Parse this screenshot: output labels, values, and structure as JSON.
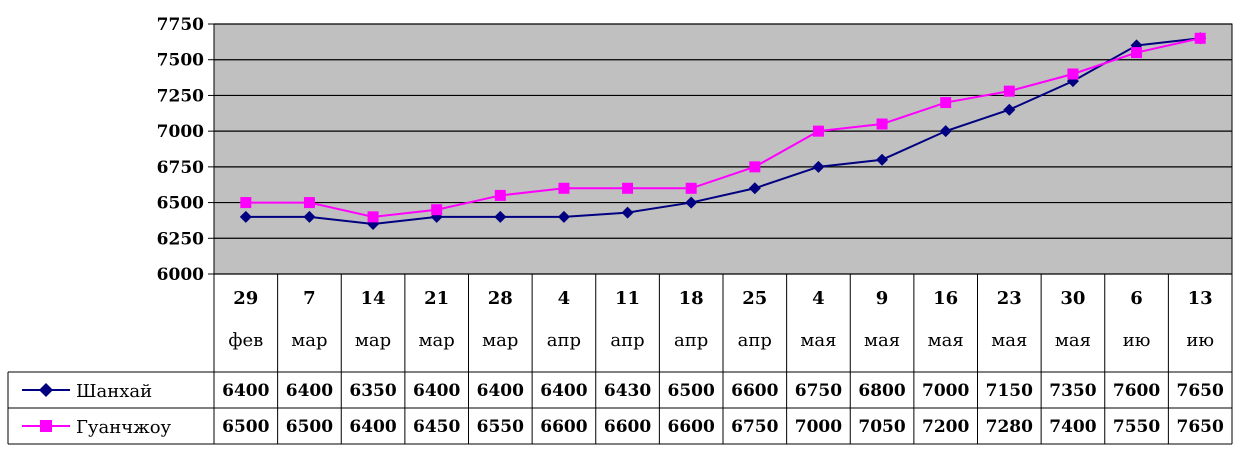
{
  "chart_data": {
    "type": "line",
    "title": "",
    "xlabel": "",
    "ylabel": "",
    "ylim": [
      6000,
      7750
    ],
    "yticks": [
      6000,
      6250,
      6500,
      6750,
      7000,
      7250,
      7500,
      7750
    ],
    "grid": true,
    "plot_background": "#c0c0c0",
    "legend_placement": "data-table-left",
    "categories": [
      {
        "day": "29",
        "month": "фев"
      },
      {
        "day": "7",
        "month": "мар"
      },
      {
        "day": "14",
        "month": "мар"
      },
      {
        "day": "21",
        "month": "мар"
      },
      {
        "day": "28",
        "month": "мар"
      },
      {
        "day": "4",
        "month": "апр"
      },
      {
        "day": "11",
        "month": "апр"
      },
      {
        "day": "18",
        "month": "апр"
      },
      {
        "day": "25",
        "month": "апр"
      },
      {
        "day": "4",
        "month": "мая"
      },
      {
        "day": "9",
        "month": "мая"
      },
      {
        "day": "16",
        "month": "мая"
      },
      {
        "day": "23",
        "month": "мая"
      },
      {
        "day": "30",
        "month": "мая"
      },
      {
        "day": "6",
        "month": "ию"
      },
      {
        "day": "13",
        "month": "ию"
      }
    ],
    "series": [
      {
        "name": "Шанхай",
        "color": "#000080",
        "marker": "diamond",
        "values": [
          6400,
          6400,
          6350,
          6400,
          6400,
          6400,
          6430,
          6500,
          6600,
          6750,
          6800,
          7000,
          7150,
          7350,
          7600,
          7650
        ]
      },
      {
        "name": "Гуанчжоу",
        "color": "#ff00ff",
        "marker": "square",
        "values": [
          6500,
          6500,
          6400,
          6450,
          6550,
          6600,
          6600,
          6600,
          6750,
          7000,
          7050,
          7200,
          7280,
          7400,
          7550,
          7650
        ]
      }
    ]
  }
}
